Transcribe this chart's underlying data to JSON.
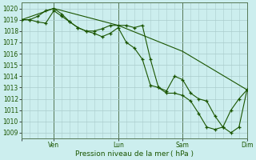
{
  "background_color": "#cce8e8",
  "plot_bg_color": "#cceeee",
  "grid_color": "#aacccc",
  "line_color": "#1a5500",
  "marker_color": "#1a5500",
  "day_line_color": "#557755",
  "xlabel": "Pression niveau de la mer ( hPa )",
  "ylim": [
    1008.5,
    1020.5
  ],
  "yticks": [
    1009,
    1010,
    1011,
    1012,
    1013,
    1014,
    1015,
    1016,
    1017,
    1018,
    1019,
    1020
  ],
  "day_positions": [
    0,
    24,
    72,
    120,
    168
  ],
  "day_labels": [
    "",
    "Ven",
    "Lun",
    "Sam",
    "Dim"
  ],
  "xlim": [
    0,
    168
  ],
  "series1_x": [
    0,
    6,
    12,
    18,
    24,
    30,
    36,
    42,
    48,
    54,
    60,
    66,
    72,
    78,
    84,
    90,
    96,
    102,
    108,
    114,
    120,
    126,
    132,
    138,
    144,
    150,
    156,
    162,
    168
  ],
  "series1_y": [
    1019,
    1019,
    1018.8,
    1018.7,
    1019.8,
    1019.3,
    1018.8,
    1018.3,
    1018.0,
    1017.8,
    1017.5,
    1017.8,
    1018.3,
    1017.0,
    1016.5,
    1015.5,
    1013.2,
    1013.0,
    1012.5,
    1012.5,
    1012.3,
    1011.8,
    1010.7,
    1009.5,
    1009.3,
    1009.5,
    1011.0,
    1012.0,
    1012.8
  ],
  "series2_x": [
    0,
    6,
    12,
    18,
    24,
    30,
    36,
    42,
    48,
    54,
    60,
    66,
    72,
    78,
    84,
    90,
    96,
    102,
    108,
    114,
    120,
    126,
    132,
    138,
    144,
    150,
    156,
    162,
    168
  ],
  "series2_y": [
    1019,
    1019.0,
    1019.3,
    1019.8,
    1020.0,
    1019.5,
    1018.8,
    1018.3,
    1018.0,
    1018.0,
    1018.2,
    1018.5,
    1018.5,
    1018.5,
    1018.3,
    1018.5,
    1015.5,
    1013.0,
    1012.7,
    1014.0,
    1013.7,
    1012.5,
    1012.0,
    1011.8,
    1010.5,
    1009.5,
    1009.0,
    1009.5,
    1012.8
  ],
  "series3_x": [
    0,
    24,
    72,
    120,
    168
  ],
  "series3_y": [
    1019.0,
    1020.0,
    1018.5,
    1016.2,
    1012.8
  ]
}
